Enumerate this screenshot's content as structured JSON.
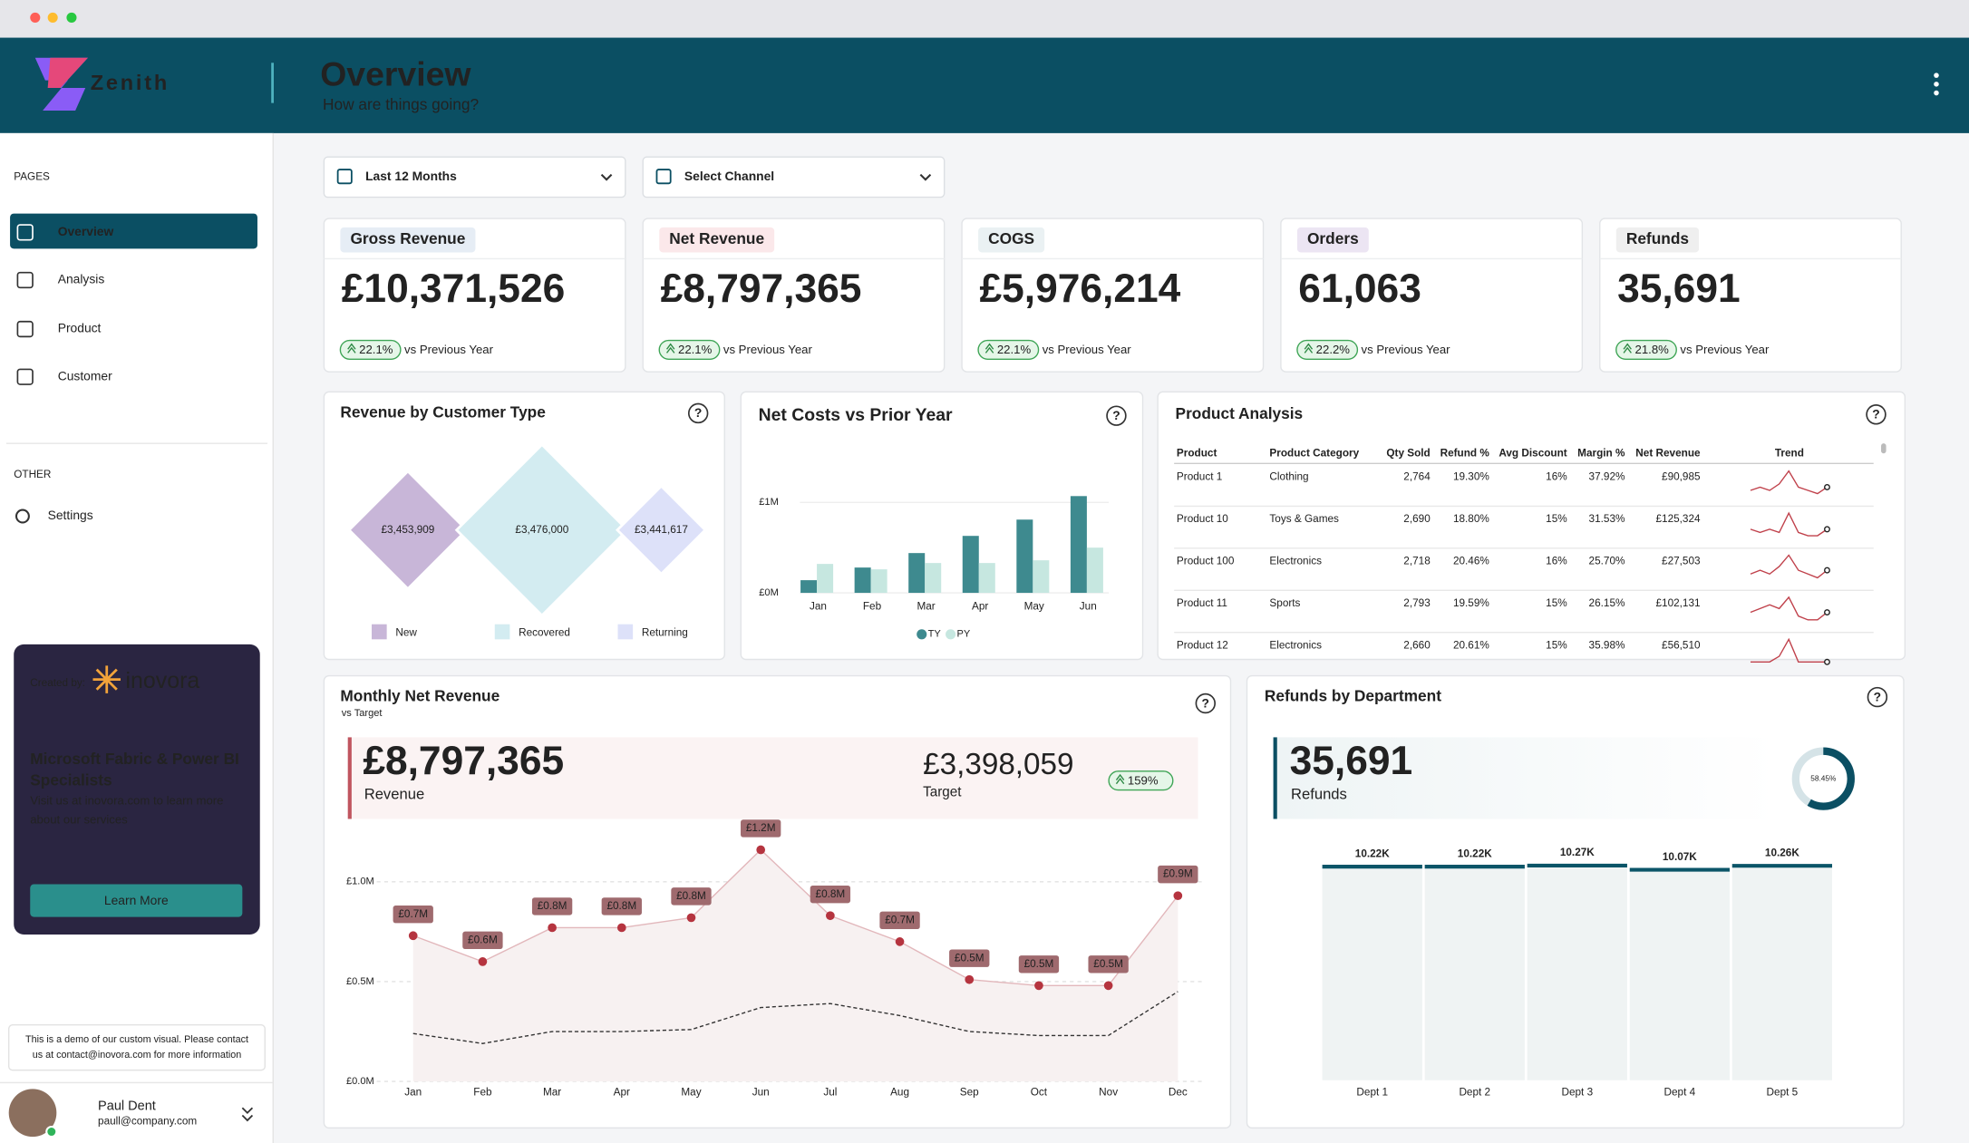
{
  "header": {
    "logo": "Zenith",
    "title": "Overview",
    "subtitle": "How are things going?"
  },
  "sidebar": {
    "pages_label": "PAGES",
    "pages": [
      "Overview",
      "Analysis",
      "Product",
      "Customer"
    ],
    "other_label": "OTHER",
    "other": [
      "Settings"
    ],
    "promo": {
      "created_by": "Created by:",
      "brand": "inovora",
      "headline": [
        "Microsoft Fabric & Power BI",
        "Specialists"
      ],
      "body": [
        "Visit us at inovora.com to learn more",
        "about our services"
      ],
      "button": "Learn More"
    },
    "note": [
      "This is a demo of our custom visual. Please contact",
      "us at contact@inovora.com for more information"
    ],
    "user": {
      "name": "Paul Dent",
      "email": "paull@company.com"
    }
  },
  "filters": [
    "Last 12 Months",
    "Select Channel"
  ],
  "kpis": [
    {
      "label": "Gross Revenue",
      "value": "£10,371,526",
      "change": "22.1%",
      "note": "vs Previous Year",
      "color": "#e6edf5"
    },
    {
      "label": "Net Revenue",
      "value": "£8,797,365",
      "change": "22.1%",
      "note": "vs Previous Year",
      "color": "#fbe8ea"
    },
    {
      "label": "COGS",
      "value": "£5,976,214",
      "change": "22.1%",
      "note": "vs Previous Year",
      "color": "#eaf1f3"
    },
    {
      "label": "Orders",
      "value": "61,063",
      "change": "22.2%",
      "note": "vs Previous Year",
      "color": "#ece5f3"
    },
    {
      "label": "Refunds",
      "value": "35,691",
      "change": "21.8%",
      "note": "vs Previous Year",
      "color": "#efefef"
    }
  ],
  "product_table": {
    "title": "Product Analysis",
    "columns": [
      "Product",
      "Product Category",
      "Qty Sold",
      "Refund %",
      "Avg Discount",
      "Margin %",
      "Net Revenue",
      "Trend"
    ],
    "rows": [
      [
        "Product 1",
        "Clothing",
        "2,764",
        "19.30%",
        "16%",
        "37.92%",
        "£90,985"
      ],
      [
        "Product 10",
        "Toys & Games",
        "2,690",
        "18.80%",
        "15%",
        "31.53%",
        "£125,324"
      ],
      [
        "Product 100",
        "Electronics",
        "2,718",
        "20.46%",
        "16%",
        "25.70%",
        "£27,503"
      ],
      [
        "Product 11",
        "Sports",
        "2,793",
        "19.59%",
        "15%",
        "26.15%",
        "£102,131"
      ],
      [
        "Product 12",
        "Electronics",
        "2,660",
        "20.61%",
        "15%",
        "35.98%",
        "£56,510"
      ]
    ],
    "trend": [
      [
        4,
        5,
        4,
        6,
        10,
        5,
        4,
        3,
        5
      ],
      [
        5,
        4,
        5,
        4,
        10,
        4,
        3,
        3,
        5
      ],
      [
        4,
        5,
        4,
        6,
        9,
        5,
        4,
        3,
        5
      ],
      [
        5,
        6,
        7,
        6,
        9,
        4,
        3,
        3,
        5
      ],
      [
        5,
        5,
        5,
        6,
        9,
        5,
        5,
        5,
        5
      ]
    ],
    "trend_color": "#c0414b"
  },
  "chart_data": [
    {
      "type": "diamond",
      "title": "Revenue by Customer Type",
      "categories": [
        "New",
        "Recovered",
        "Returning"
      ],
      "values": [
        3453909,
        3476000,
        3441617
      ],
      "value_labels": [
        "£3,453,909",
        "£3,476,000",
        "£3,441,617"
      ],
      "colors": [
        "#c8b6d8",
        "#d3ecf1",
        "#dde1f9"
      ]
    },
    {
      "type": "bar",
      "title": "Net Costs vs Prior Year",
      "categories": [
        "Jan",
        "Feb",
        "Mar",
        "Apr",
        "May",
        "Jun"
      ],
      "series": [
        {
          "name": "TY",
          "color": "#3e8a8f",
          "values": [
            140000,
            280000,
            440000,
            630000,
            810000,
            1070000
          ]
        },
        {
          "name": "PY",
          "color": "#c6e7e0",
          "values": [
            320000,
            260000,
            330000,
            330000,
            360000,
            500000
          ]
        }
      ],
      "ylim": [
        0,
        1200000
      ],
      "yticks": [
        {
          "value": 0,
          "label": "£0M"
        },
        {
          "value": 1000000,
          "label": "£1M"
        }
      ]
    },
    {
      "type": "line",
      "title": "Monthly Net Revenue",
      "subtitle": "vs Target",
      "summary": {
        "value": "£8,797,365",
        "label": "Revenue",
        "target": "£3,398,059",
        "target_label": "Target",
        "change": "159%"
      },
      "categories": [
        "Jan",
        "Feb",
        "Mar",
        "Apr",
        "May",
        "Jun",
        "Jul",
        "Aug",
        "Sep",
        "Oct",
        "Nov",
        "Dec"
      ],
      "series": [
        {
          "name": "Revenue",
          "color": "#b5343f",
          "values": [
            730000,
            600000,
            770000,
            770000,
            820000,
            1160000,
            830000,
            700000,
            510000,
            480000,
            480000,
            930000
          ],
          "value_labels": [
            "£0.7M",
            "£0.6M",
            "£0.8M",
            "£0.8M",
            "£0.8M",
            "£1.2M",
            "£0.8M",
            "£0.7M",
            "£0.5M",
            "£0.5M",
            "£0.5M",
            "£0.9M"
          ]
        },
        {
          "name": "Target",
          "color": "#333333",
          "values": [
            240000,
            190000,
            250000,
            250000,
            260000,
            370000,
            390000,
            330000,
            250000,
            230000,
            230000,
            450000
          ]
        }
      ],
      "ylim": [
        0,
        1300000
      ],
      "yticks": [
        {
          "value": 0,
          "label": "£0.0M"
        },
        {
          "value": 500000,
          "label": "£0.5M"
        },
        {
          "value": 1000000,
          "label": "£1.0M"
        }
      ],
      "grid": true
    },
    {
      "type": "bar",
      "title": "Refunds by Department",
      "summary": {
        "value": "35,691",
        "label": "Refunds"
      },
      "donut": {
        "value": 58.45,
        "value_label": "58.45%"
      },
      "categories": [
        "Dept 1",
        "Dept 2",
        "Dept 3",
        "Dept 4",
        "Dept 5"
      ],
      "values": [
        10220,
        10220,
        10270,
        10070,
        10260
      ],
      "value_labels": [
        "10.22K",
        "10.22K",
        "10.27K",
        "10.07K",
        "10.26K"
      ],
      "color": "#0b5568",
      "ylim": [
        0,
        10400
      ]
    }
  ]
}
